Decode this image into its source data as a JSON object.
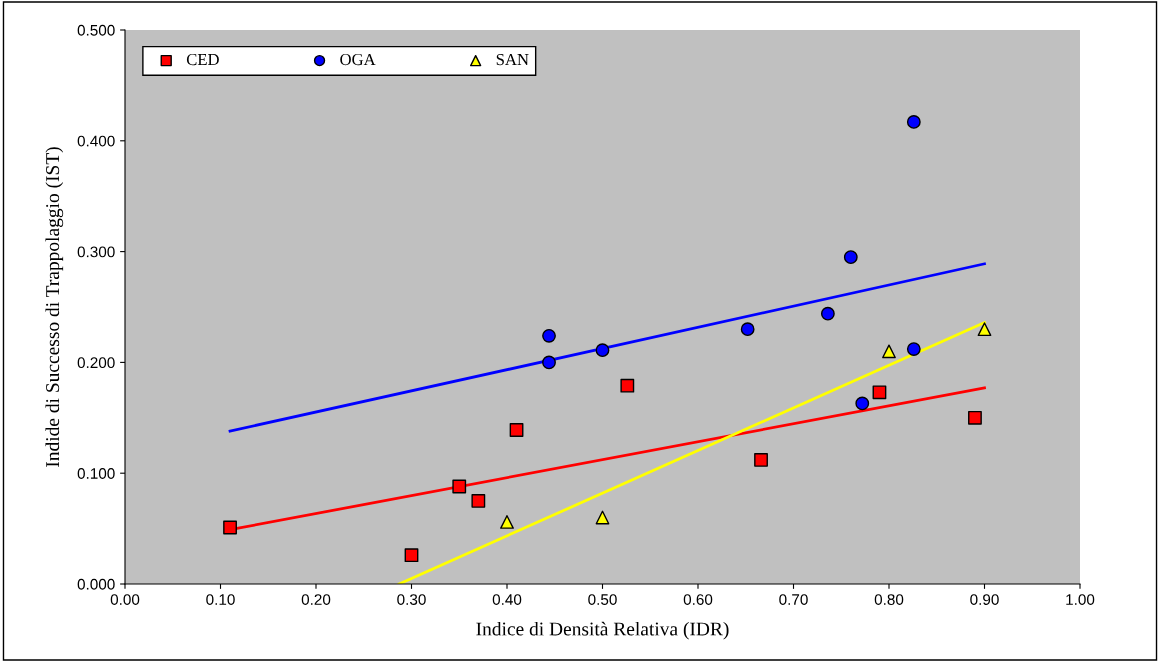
{
  "chart_data": {
    "type": "scatter",
    "xlabel": "Indice di Densità Relativa (IDR)",
    "ylabel": "Indide di Successo di Trappolaggio (IST)",
    "xlim": [
      0,
      1
    ],
    "xticks": [
      {
        "value": 0,
        "label": "0.00"
      },
      {
        "value": 0.1,
        "label": "0.10"
      },
      {
        "value": 0.2,
        "label": "0.20"
      },
      {
        "value": 0.3,
        "label": "0.30"
      },
      {
        "value": 0.4,
        "label": "0.40"
      },
      {
        "value": 0.5,
        "label": "0.50"
      },
      {
        "value": 0.6,
        "label": "0.60"
      },
      {
        "value": 0.7,
        "label": "0.70"
      },
      {
        "value": 0.8,
        "label": "0.80"
      },
      {
        "value": 0.9,
        "label": "0.90"
      },
      {
        "value": 1,
        "label": "1.00"
      }
    ],
    "ylim": [
      0,
      0.5
    ],
    "yticks": [
      {
        "value": 0,
        "label": "0.000"
      },
      {
        "value": 0.1,
        "label": "0.100"
      },
      {
        "value": 0.2,
        "label": "0.200"
      },
      {
        "value": 0.3,
        "label": "0.300"
      },
      {
        "value": 0.4,
        "label": "0.400"
      },
      {
        "value": 0.5,
        "label": "0.500"
      }
    ],
    "grid": false,
    "legend": "top left",
    "series": [
      {
        "name": "CED",
        "color": "#ff0000",
        "marker": "square",
        "x": [
          0.11,
          0.3,
          0.35,
          0.37,
          0.41,
          0.526,
          0.666,
          0.79,
          0.89
        ],
        "values": [
          0.051,
          0.026,
          0.088,
          0.075,
          0.139,
          0.179,
          0.112,
          0.173,
          0.15
        ]
      },
      {
        "name": "OGA",
        "color": "#0000ff",
        "marker": "circle",
        "x": [
          0.444,
          0.444,
          0.5,
          0.652,
          0.736,
          0.76,
          0.826,
          0.826,
          0.772
        ],
        "values": [
          0.224,
          0.2,
          0.211,
          0.23,
          0.244,
          0.295,
          0.417,
          0.212,
          0.163
        ]
      },
      {
        "name": "SAN",
        "color": "#ffff00",
        "marker": "triangle",
        "x": [
          0.4,
          0.5,
          0.8,
          0.9
        ],
        "values": [
          0.056,
          0.06,
          0.21,
          0.23
        ]
      },
      {
        "type": "line",
        "color": "#0000ff",
        "marker": "none",
        "x": [
          0.11,
          0.9
        ],
        "values": [
          0.138,
          0.289
        ]
      },
      {
        "type": "line",
        "color": "#ff0000",
        "marker": "none",
        "x": [
          0.11,
          0.9
        ],
        "values": [
          0.049,
          0.177
        ]
      },
      {
        "type": "line",
        "color": "#ffff00",
        "marker": "none",
        "x": [
          0.287,
          0.9
        ],
        "values": [
          0.0,
          0.236
        ]
      }
    ]
  }
}
